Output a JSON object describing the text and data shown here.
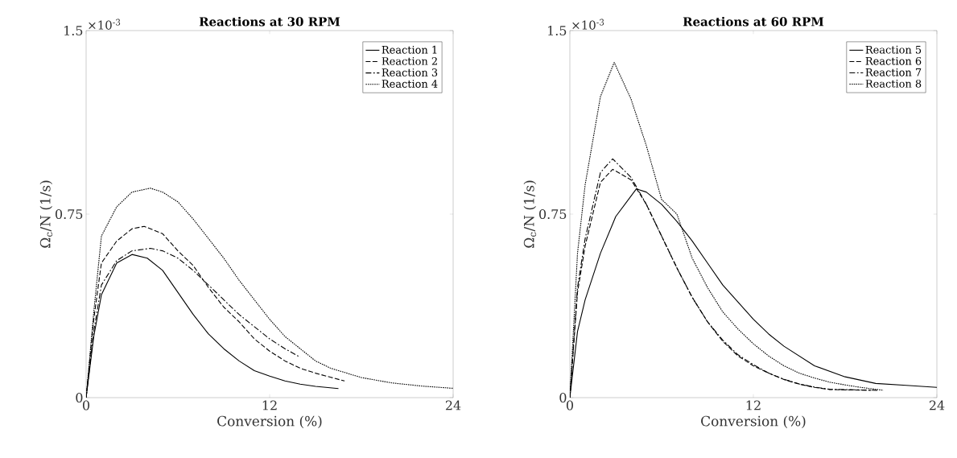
{
  "chart_data": [
    {
      "type": "line",
      "title": "Reactions at 30 RPM",
      "xlabel": "Conversion (%)",
      "ylabel": "Ω$_{c}$/N (1/s)",
      "xlim": [
        0,
        24
      ],
      "ylim": [
        0,
        1.5
      ],
      "xticks": [
        0,
        12,
        24
      ],
      "yticks": [
        0,
        0.75,
        1.5
      ],
      "legend": "top right",
      "annotations": [
        "×10$^{-3}$"
      ],
      "series": [
        {
          "name": "Reaction 1",
          "color": "#000000",
          "line_style": "solid",
          "x": [
            0,
            0.5,
            1,
            2,
            3,
            4,
            5,
            6,
            7,
            8,
            9,
            10,
            11,
            12,
            13,
            14,
            15,
            16.5
          ],
          "values": [
            0,
            0.25,
            0.42,
            0.55,
            0.585,
            0.57,
            0.52,
            0.43,
            0.34,
            0.26,
            0.2,
            0.15,
            0.11,
            0.088,
            0.068,
            0.055,
            0.046,
            0.037
          ]
        },
        {
          "name": "Reaction 2",
          "color": "#000000",
          "line_style": "dashed",
          "x": [
            0,
            0.5,
            1,
            2,
            3,
            3.8,
            5,
            6,
            7,
            8,
            9,
            10,
            11,
            12,
            13,
            14,
            15,
            16,
            16.9
          ],
          "values": [
            0,
            0.32,
            0.55,
            0.64,
            0.69,
            0.7,
            0.67,
            0.6,
            0.54,
            0.45,
            0.37,
            0.31,
            0.24,
            0.19,
            0.15,
            0.12,
            0.1,
            0.083,
            0.068
          ]
        },
        {
          "name": "Reaction 3",
          "color": "#000000",
          "line_style": "dashdot",
          "x": [
            0,
            0.5,
            1,
            2,
            3,
            4.2,
            5,
            6,
            7,
            8,
            9,
            10,
            11,
            12,
            13,
            14
          ],
          "values": [
            0,
            0.27,
            0.46,
            0.56,
            0.6,
            0.61,
            0.6,
            0.57,
            0.52,
            0.46,
            0.4,
            0.34,
            0.29,
            0.24,
            0.2,
            0.165
          ]
        },
        {
          "name": "Reaction 4",
          "color": "#000000",
          "line_style": "dotted",
          "x": [
            0,
            0.5,
            1,
            2,
            3,
            4.2,
            5,
            6,
            7,
            8,
            9,
            10,
            11,
            12,
            13,
            14,
            15,
            16,
            18,
            20,
            22,
            24
          ],
          "values": [
            0,
            0.35,
            0.66,
            0.78,
            0.84,
            0.856,
            0.84,
            0.8,
            0.73,
            0.65,
            0.57,
            0.48,
            0.4,
            0.32,
            0.25,
            0.2,
            0.15,
            0.12,
            0.082,
            0.06,
            0.047,
            0.038
          ]
        }
      ]
    },
    {
      "type": "line",
      "title": "Reactions at 60 RPM",
      "xlabel": "Conversion (%)",
      "ylabel": "Ω$_{c}$/N (1/s)",
      "xlim": [
        0,
        24
      ],
      "ylim": [
        0,
        1.5
      ],
      "xticks": [
        0,
        12,
        24
      ],
      "yticks": [
        0,
        0.75,
        1.5
      ],
      "legend": "top right",
      "annotations": [
        "×10$^{-3}$"
      ],
      "series": [
        {
          "name": "Reaction 5",
          "color": "#000000",
          "line_style": "solid",
          "x": [
            0,
            0.5,
            1,
            2,
            3,
            4.35,
            5,
            6,
            7,
            8,
            9,
            10,
            11,
            12,
            13,
            14,
            15,
            16,
            18,
            20,
            22,
            24
          ],
          "values": [
            0,
            0.27,
            0.4,
            0.59,
            0.74,
            0.853,
            0.84,
            0.79,
            0.72,
            0.64,
            0.55,
            0.46,
            0.39,
            0.32,
            0.26,
            0.21,
            0.17,
            0.13,
            0.085,
            0.058,
            0.05,
            0.042
          ]
        },
        {
          "name": "Reaction 6",
          "color": "#000000",
          "line_style": "dashed",
          "x": [
            0,
            0.5,
            1,
            2,
            2.8,
            4,
            5,
            6,
            7,
            8,
            9,
            10,
            11,
            12,
            13,
            14,
            15,
            16,
            17,
            19.7
          ],
          "values": [
            0,
            0.43,
            0.62,
            0.88,
            0.933,
            0.89,
            0.79,
            0.66,
            0.53,
            0.41,
            0.31,
            0.23,
            0.17,
            0.13,
            0.1,
            0.074,
            0.055,
            0.042,
            0.033,
            0.03
          ]
        },
        {
          "name": "Reaction 7",
          "color": "#000000",
          "line_style": "dashdot",
          "x": [
            0,
            0.5,
            1,
            2,
            2.8,
            4,
            5,
            6,
            7,
            8,
            9,
            10,
            11,
            12,
            13,
            14,
            15,
            16,
            17,
            20.1
          ],
          "values": [
            0,
            0.45,
            0.65,
            0.92,
            0.976,
            0.9,
            0.79,
            0.66,
            0.53,
            0.41,
            0.31,
            0.235,
            0.175,
            0.135,
            0.1,
            0.075,
            0.056,
            0.043,
            0.034,
            0.03
          ]
        },
        {
          "name": "Reaction 8",
          "color": "#000000",
          "line_style": "dotted",
          "x": [
            0,
            0.5,
            1,
            2,
            2.9,
            4,
            5,
            6,
            7,
            8,
            9,
            10,
            11,
            12,
            13,
            14,
            15,
            16,
            17,
            18,
            19,
            20.5
          ],
          "values": [
            0,
            0.59,
            0.87,
            1.23,
            1.37,
            1.22,
            1.03,
            0.81,
            0.75,
            0.57,
            0.45,
            0.35,
            0.28,
            0.22,
            0.17,
            0.13,
            0.1,
            0.08,
            0.063,
            0.052,
            0.042,
            0.03
          ]
        }
      ]
    }
  ]
}
